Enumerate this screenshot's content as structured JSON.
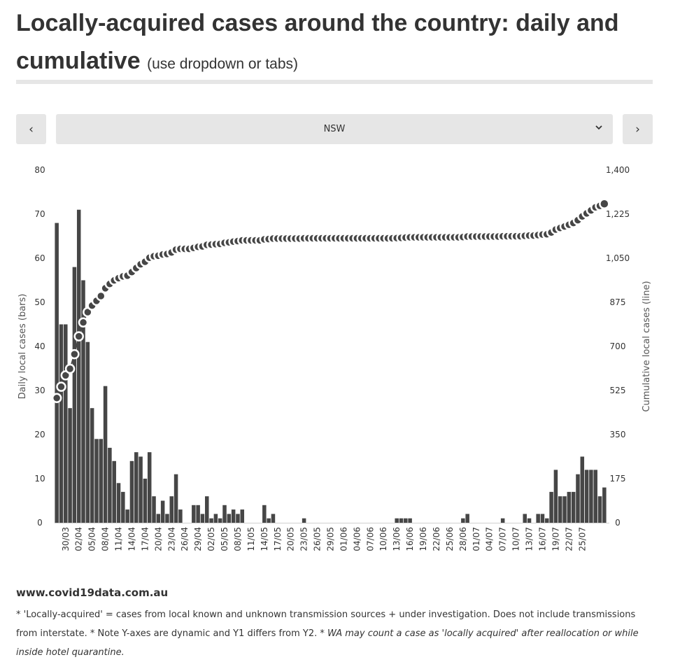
{
  "header": {
    "title": "Locally-acquired cases around the country: daily and cumulative",
    "subtitle": "(use dropdown or tabs)"
  },
  "controls": {
    "prev_label": "‹",
    "next_label": "›",
    "selected_region": "NSW",
    "chevron_icon": "chevron-down-icon"
  },
  "footer": {
    "site": "www.covid19data.com.au",
    "note_main": "* 'Locally-acquired' = cases from local known and unknown transmission sources + under investigation. Does not include transmissions from interstate. * Note Y-axes are dynamic and Y1 differs from Y2. ",
    "note_italic": "* WA may count a case as 'locally acquired' after reallocation or while inside hotel quarantine."
  },
  "colors": {
    "bar": "#464646",
    "line_marker_fill": "#464646",
    "line_marker_stroke": "#ffffff",
    "axis_text": "#333333",
    "grid": "#e6e6e6"
  },
  "chart_data": {
    "type": "bar+line",
    "ylabel_left": "Daily local cases (bars)",
    "ylabel_right": "Cumulative local cases (line)",
    "y_left_range": [
      0,
      80
    ],
    "y_left_ticks": [
      0,
      10,
      20,
      30,
      40,
      50,
      60,
      70,
      80
    ],
    "y_right_range": [
      0,
      1400
    ],
    "y_right_ticks": [
      0,
      175,
      350,
      525,
      700,
      875,
      1050,
      1225,
      1400
    ],
    "y_right_tick_labels": [
      "0",
      "175",
      "350",
      "525",
      "700",
      "875",
      "1,050",
      "1,225",
      "1,400"
    ],
    "x_start": "28/03",
    "x_tick_labels": [
      "30/03",
      "02/04",
      "05/04",
      "08/04",
      "11/04",
      "14/04",
      "17/04",
      "20/04",
      "23/04",
      "26/04",
      "29/04",
      "02/05",
      "05/05",
      "08/05",
      "11/05",
      "14/05",
      "17/05",
      "20/05",
      "23/05",
      "26/05",
      "29/05",
      "01/06",
      "04/06",
      "07/06",
      "10/06",
      "13/06",
      "16/06",
      "19/06",
      "22/06",
      "25/06",
      "28/06",
      "01/07",
      "04/07",
      "07/07",
      "10/07",
      "13/07",
      "16/07",
      "19/07",
      "22/07",
      "25/07"
    ],
    "series": [
      {
        "name": "Daily local cases",
        "type": "bar",
        "axis": "left",
        "values": [
          68,
          45,
          45,
          26,
          58,
          71,
          55,
          41,
          26,
          19,
          19,
          31,
          17,
          14,
          9,
          7,
          3,
          14,
          16,
          15,
          10,
          16,
          6,
          2,
          5,
          2,
          6,
          11,
          3,
          0,
          0,
          4,
          4,
          2,
          6,
          1,
          2,
          1,
          4,
          2,
          3,
          2,
          3,
          0,
          0,
          0,
          0,
          4,
          1,
          2,
          0,
          0,
          0,
          0,
          0,
          0,
          1,
          0,
          0,
          0,
          0,
          0,
          0,
          0,
          0,
          0,
          0,
          0,
          0,
          0,
          0,
          0,
          0,
          0,
          0,
          0,
          0,
          1,
          1,
          1,
          1,
          0,
          0,
          0,
          0,
          0,
          0,
          0,
          0,
          0,
          0,
          0,
          1,
          2,
          0,
          0,
          0,
          0,
          0,
          0,
          0,
          1,
          0,
          0,
          0,
          0,
          2,
          1,
          0,
          2,
          2,
          1,
          7,
          12,
          6,
          6,
          7,
          7,
          11,
          15,
          12,
          12,
          12,
          6,
          8
        ]
      },
      {
        "name": "Cumulative local cases",
        "type": "line",
        "axis": "right",
        "values": [
          495,
          540,
          585,
          611,
          669,
          740,
          795,
          836,
          862,
          881,
          900,
          931,
          948,
          962,
          971,
          978,
          981,
          995,
          1011,
          1026,
          1036,
          1052,
          1058,
          1060,
          1065,
          1067,
          1073,
          1084,
          1087,
          1087,
          1087,
          1091,
          1095,
          1097,
          1103,
          1104,
          1106,
          1107,
          1111,
          1113,
          1116,
          1118,
          1121,
          1121,
          1121,
          1121,
          1121,
          1125,
          1126,
          1128,
          1128,
          1128,
          1128,
          1128,
          1128,
          1128,
          1129,
          1129,
          1129,
          1129,
          1129,
          1129,
          1129,
          1129,
          1129,
          1129,
          1129,
          1129,
          1129,
          1129,
          1129,
          1129,
          1129,
          1129,
          1129,
          1129,
          1129,
          1130,
          1131,
          1132,
          1133,
          1133,
          1133,
          1133,
          1133,
          1133,
          1133,
          1133,
          1133,
          1133,
          1133,
          1133,
          1134,
          1136,
          1136,
          1136,
          1136,
          1136,
          1136,
          1136,
          1136,
          1137,
          1137,
          1137,
          1137,
          1137,
          1139,
          1140,
          1140,
          1142,
          1144,
          1145,
          1152,
          1164,
          1170,
          1176,
          1183,
          1190,
          1201,
          1216,
          1228,
          1240,
          1252,
          1258,
          1266
        ]
      }
    ]
  }
}
